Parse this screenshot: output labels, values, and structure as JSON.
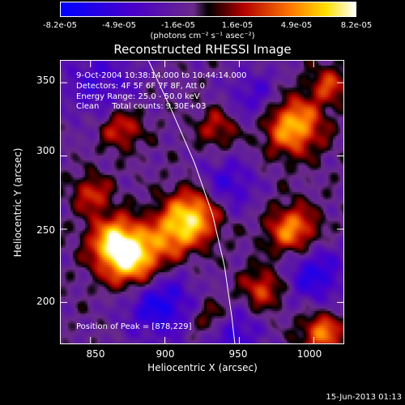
{
  "chart_data": {
    "type": "heatmap",
    "title": "Reconstructed RHESSI Image",
    "xlabel": "Heliocentric X (arcsec)",
    "ylabel": "Heliocentric Y (arcsec)",
    "xlim": [
      830,
      1020
    ],
    "ylim": [
      172,
      365
    ],
    "x_ticks": [
      850,
      900,
      950,
      1000
    ],
    "y_ticks": [
      200,
      250,
      300,
      350
    ],
    "colorbar": {
      "ticks": [
        "-8.2e-05",
        "-4.9e-05",
        "-1.6e-05",
        "1.6e-05",
        "4.9e-05",
        "8.2e-05"
      ],
      "range": [
        -8.2e-05,
        8.2e-05
      ],
      "units": "(photons cm⁻² s⁻¹ asec⁻²)"
    },
    "annotations": {
      "time_range": "9-Oct-2004 10:38:14.000 to 10:44:14.000",
      "detectors": "Detectors: 4F 5F 6F 7F 8F, Att 0",
      "energy": "Energy Range: 25.0 - 50.0 keV",
      "method": "Clean     Total counts: 9.30E+03",
      "peak": "Position of Peak = [878,229]"
    },
    "peak_position": [
      878,
      229
    ],
    "blobs": [
      {
        "x": 878,
        "y": 229,
        "amp": 1.0,
        "w": 14
      },
      {
        "x": 865,
        "y": 243,
        "amp": 0.8,
        "w": 12
      },
      {
        "x": 920,
        "y": 262,
        "amp": 0.85,
        "w": 13
      },
      {
        "x": 905,
        "y": 248,
        "amp": 0.6,
        "w": 12
      },
      {
        "x": 985,
        "y": 322,
        "amp": 0.9,
        "w": 14
      },
      {
        "x": 985,
        "y": 250,
        "amp": 0.75,
        "w": 12
      },
      {
        "x": 870,
        "y": 320,
        "amp": 0.55,
        "w": 10
      },
      {
        "x": 935,
        "y": 320,
        "amp": 0.45,
        "w": 10
      },
      {
        "x": 1005,
        "y": 180,
        "amp": 0.7,
        "w": 10
      },
      {
        "x": 965,
        "y": 210,
        "amp": 0.55,
        "w": 10
      },
      {
        "x": 850,
        "y": 275,
        "amp": 0.5,
        "w": 9
      },
      {
        "x": 930,
        "y": 190,
        "amp": 0.45,
        "w": 9
      },
      {
        "x": 1010,
        "y": 350,
        "amp": 0.5,
        "w": 9
      },
      {
        "x": 895,
        "y": 200,
        "amp": -0.7,
        "w": 16
      },
      {
        "x": 940,
        "y": 280,
        "amp": -0.5,
        "w": 14
      },
      {
        "x": 855,
        "y": 350,
        "amp": -0.4,
        "w": 18
      },
      {
        "x": 1000,
        "y": 220,
        "amp": -0.6,
        "w": 14
      },
      {
        "x": 945,
        "y": 180,
        "amp": -0.5,
        "w": 12
      },
      {
        "x": 960,
        "y": 340,
        "amp": -0.4,
        "w": 14
      }
    ],
    "limb_curve": [
      [
        889,
        365
      ],
      [
        905,
        330
      ],
      [
        920,
        295
      ],
      [
        932,
        260
      ],
      [
        940,
        225
      ],
      [
        945,
        190
      ],
      [
        947,
        172
      ]
    ]
  },
  "footer": "15-Jun-2013 01:13"
}
